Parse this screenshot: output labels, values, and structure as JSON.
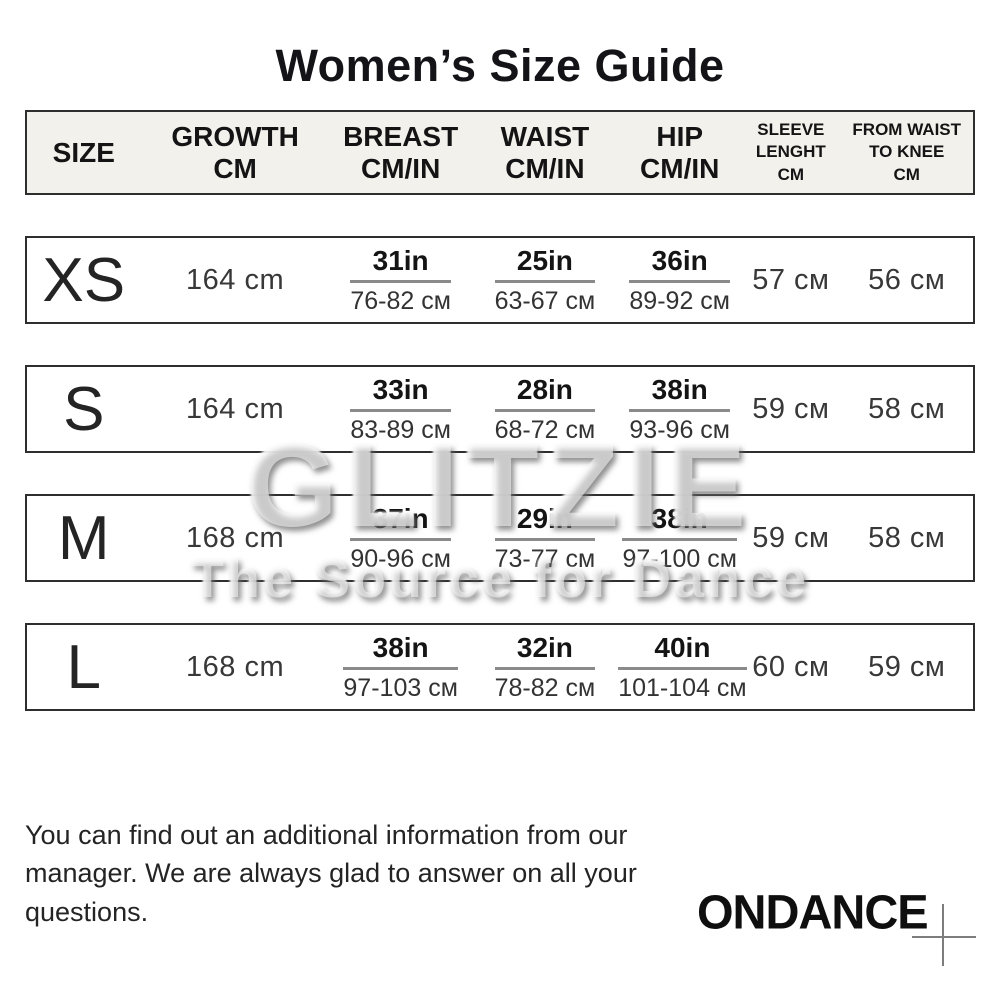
{
  "title": "Women’s Size Guide",
  "table": {
    "columns": [
      "SIZE",
      "GROWTH\nCM",
      "BREAST\nCM/IN",
      "WAIST\nCM/IN",
      "HIP\nCM/IN",
      "SLEEVE\nLENGHT\nCM",
      "FROM WAIST\nTO KNEE\nCM"
    ],
    "rows": [
      {
        "size": "XS",
        "growth": "164 cm",
        "breast_in": "31in",
        "breast_cm": "76-82 см",
        "waist_in": "25in",
        "waist_cm": "63-67 см",
        "hip_in": "36in",
        "hip_cm": "89-92 см",
        "sleeve": "57 см",
        "knee": "56 см"
      },
      {
        "size": "S",
        "growth": "164 cm",
        "breast_in": "33in",
        "breast_cm": "83-89 см",
        "waist_in": "28in",
        "waist_cm": "68-72 см",
        "hip_in": "38in",
        "hip_cm": "93-96 см",
        "sleeve": "59 см",
        "knee": "58 см"
      },
      {
        "size": "M",
        "growth": "168 cm",
        "breast_in": "37in",
        "breast_cm": "90-96 см",
        "waist_in": "29in",
        "waist_cm": "73-77 см",
        "hip_in": "38in",
        "hip_cm": "97-100 см",
        "sleeve": "59 см",
        "knee": "58 см"
      },
      {
        "size": "L",
        "growth": "168 cm",
        "breast_in": "38in",
        "breast_cm": "97-103 см",
        "waist_in": "32in",
        "waist_cm": "78-82 см",
        "hip_in": "40in",
        "hip_cm": "101-104 см",
        "sleeve": "60 см",
        "knee": "59 см"
      }
    ]
  },
  "watermark": {
    "line1": "GLITZIE",
    "line2": "The Source for Dance"
  },
  "footer": {
    "note": "You can find out an additional information from our manager. We are always glad to answer on all your questions.",
    "brand": "ONDANCE"
  },
  "colors": {
    "header_background": "#f3f1ec",
    "row_background": "#ffffff",
    "border": "#2e2e2e",
    "fraction_line": "#8a8a8a",
    "text": "#1a1a1a",
    "brand_text": "#0f0f0f",
    "cross": "#7d7d7d"
  }
}
